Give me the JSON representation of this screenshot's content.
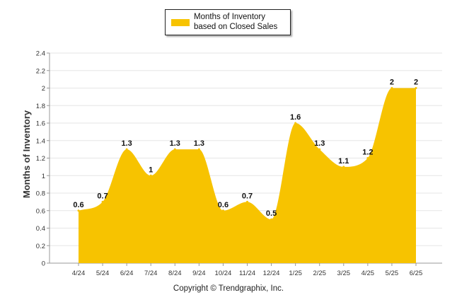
{
  "chart_data": {
    "type": "area",
    "categories": [
      "4/24",
      "5/24",
      "6/24",
      "7/24",
      "8/24",
      "9/24",
      "10/24",
      "11/24",
      "12/24",
      "1/25",
      "2/25",
      "3/25",
      "4/25",
      "5/25",
      "6/25"
    ],
    "series": [
      {
        "name": "Months of Inventory based on Closed Sales",
        "values": [
          0.6,
          0.7,
          1.3,
          1.0,
          1.3,
          1.3,
          0.6,
          0.7,
          0.5,
          1.6,
          1.3,
          1.1,
          1.2,
          2.0,
          2.0
        ],
        "data_labels": [
          "0.6",
          "0.7",
          "1.3",
          "1",
          "1.3",
          "1.3",
          "0.6",
          "0.7",
          "0.5",
          "1.6",
          "1.3",
          "1.1",
          "1.2",
          "2",
          "2"
        ],
        "color": "#f7c300"
      }
    ],
    "ylabel": "Months of Inventory",
    "xlabel": "",
    "ylim": [
      0,
      2.4
    ],
    "yticks": [
      "0",
      "0.2",
      "0.4",
      "0.6",
      "0.8",
      "1",
      "1.2",
      "1.4",
      "1.6",
      "1.8",
      "2",
      "2.2",
      "2.4"
    ],
    "grid": true,
    "legend": "top-center"
  },
  "footer": {
    "copyright": "Copyright © Trendgraphix, Inc."
  }
}
